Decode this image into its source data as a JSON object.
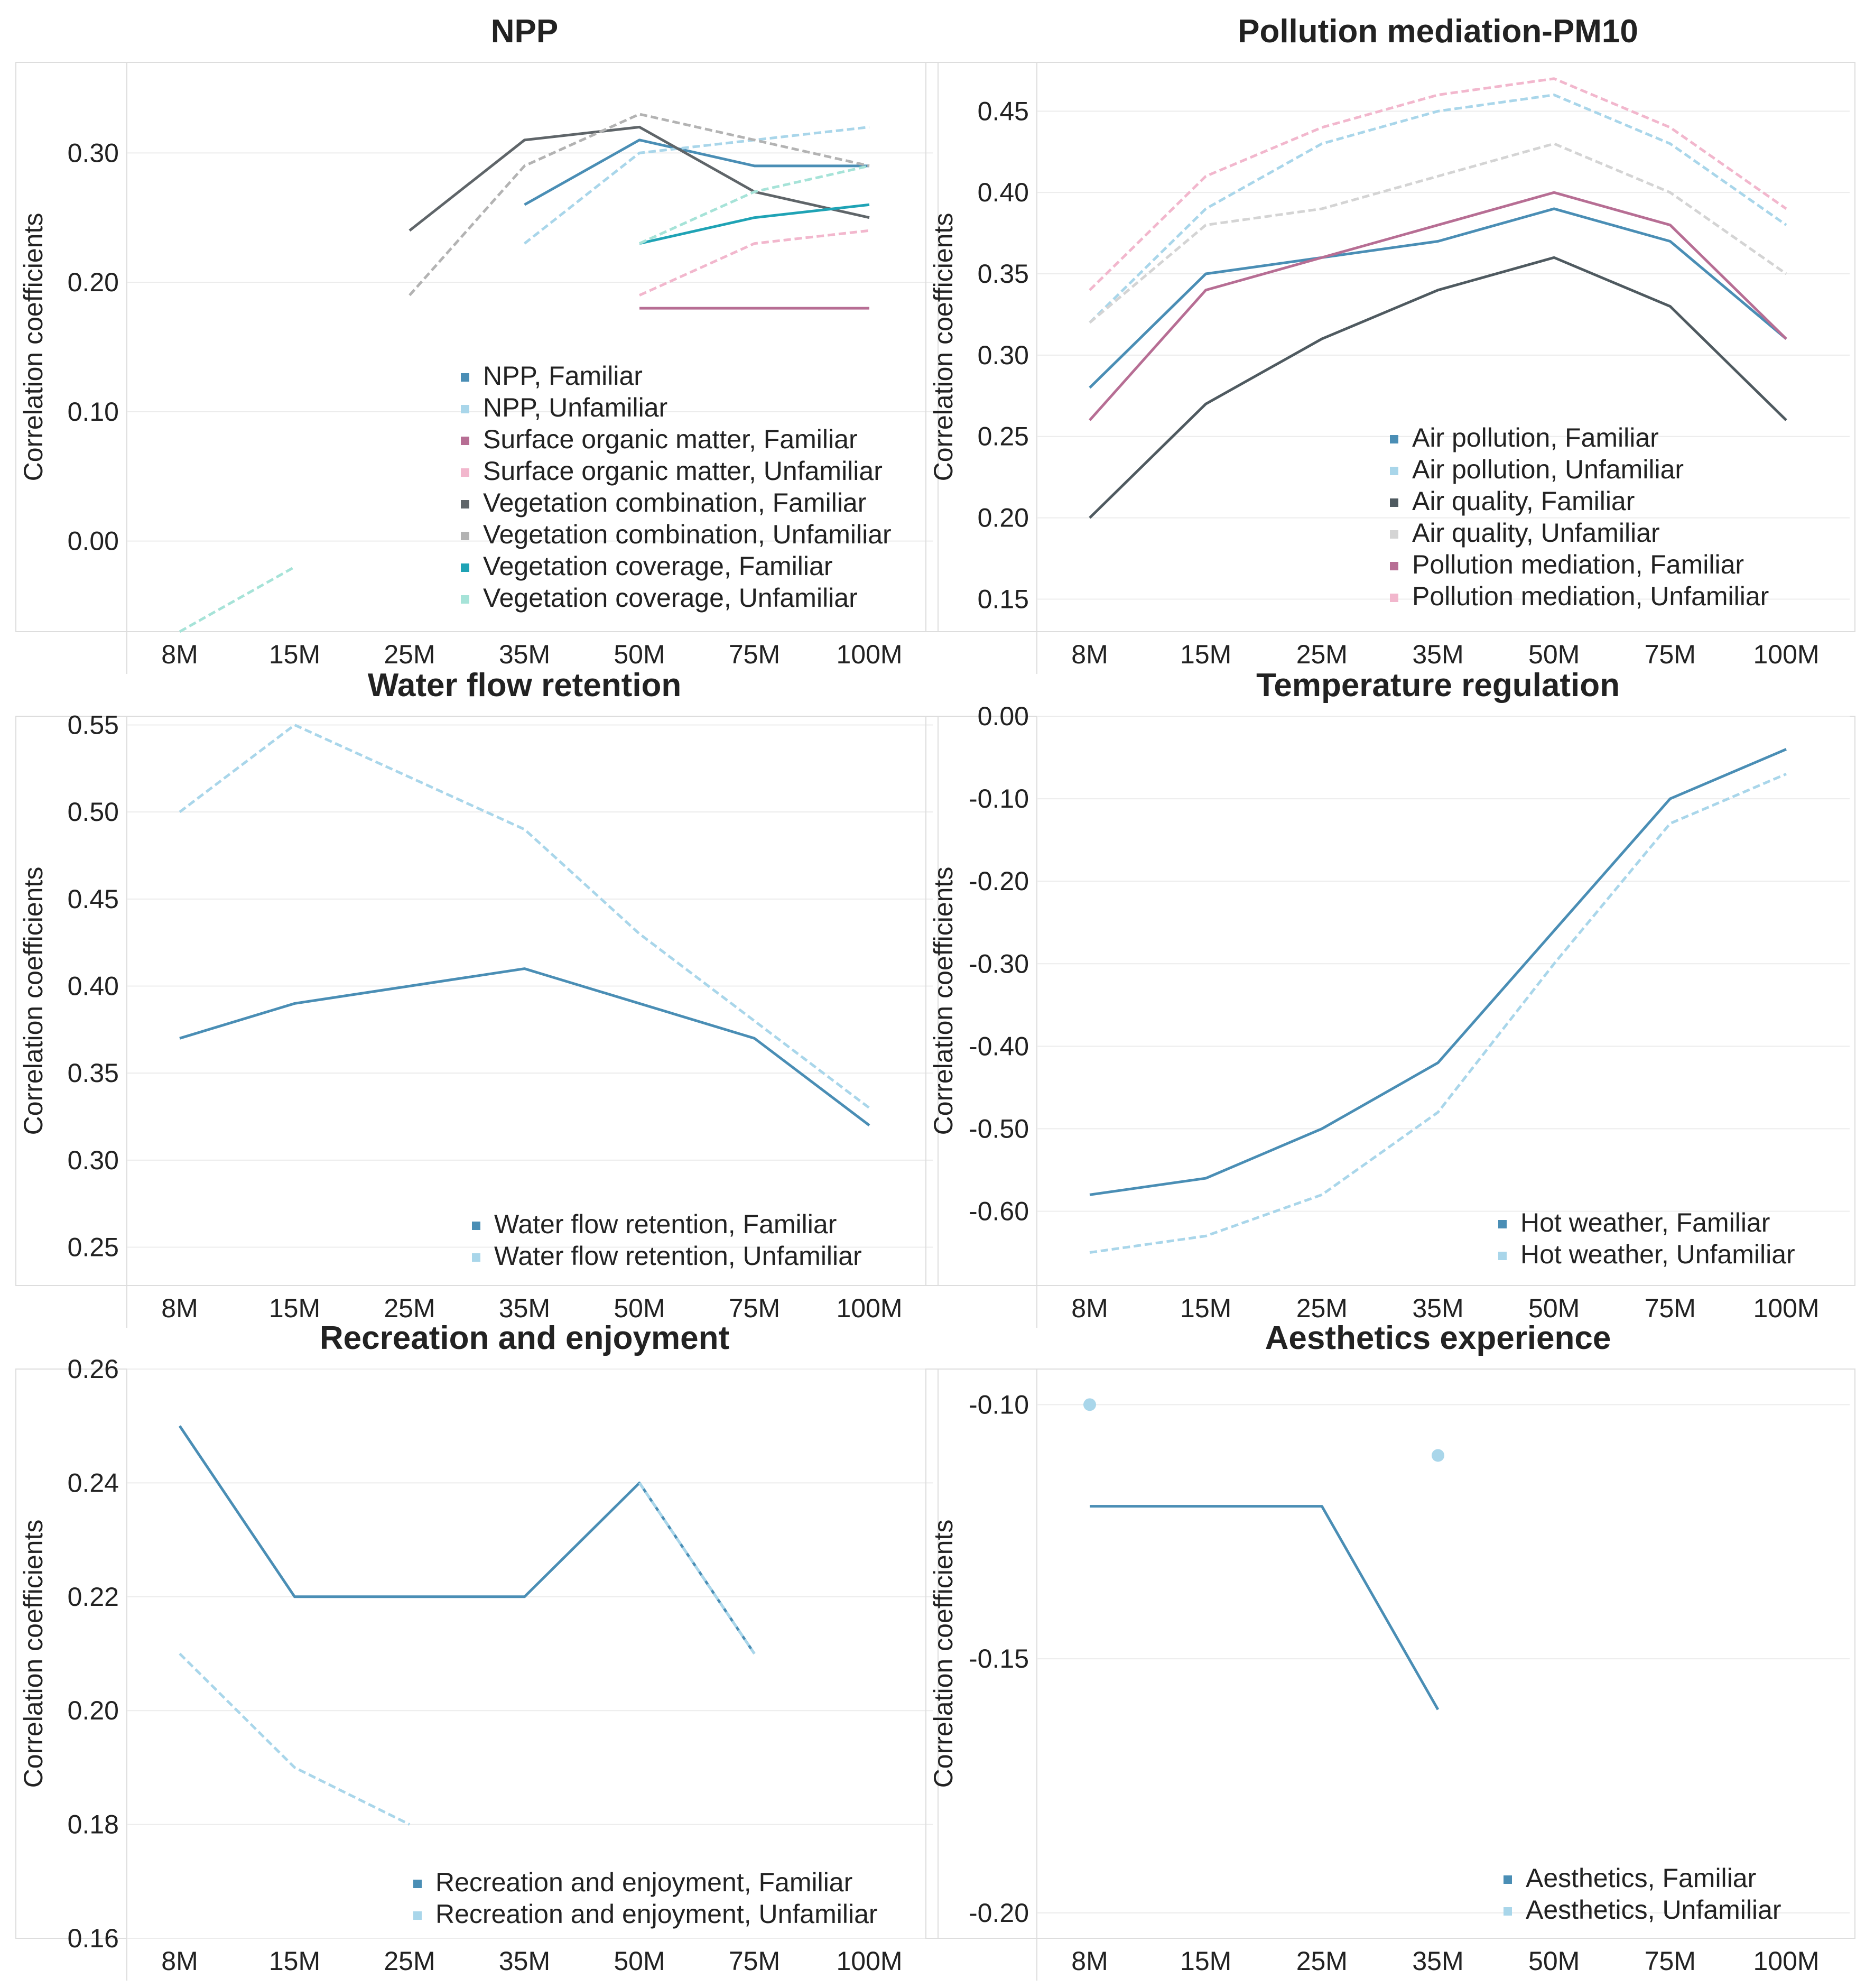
{
  "chart_data": [
    {
      "type": "line",
      "title": "NPP",
      "ylabel": "Correlation coefficients",
      "categories": [
        "8M",
        "15M",
        "25M",
        "35M",
        "50M",
        "75M",
        "100M"
      ],
      "ylim": [
        -0.07,
        0.37
      ],
      "yticks": [
        0.3,
        0.2,
        0.1,
        0.0
      ],
      "ytick_labels": [
        "0.30",
        "0.20",
        "0.10",
        "0.00"
      ],
      "legend_position": "bottom-right",
      "series": [
        {
          "name": "NPP, Familiar",
          "color": "#4a8eb5",
          "dashed": false,
          "values": [
            null,
            null,
            null,
            0.26,
            0.31,
            0.29,
            0.29
          ]
        },
        {
          "name": "NPP, Unfamiliar",
          "color": "#a9d6ea",
          "dashed": true,
          "values": [
            null,
            null,
            null,
            0.23,
            0.3,
            0.31,
            0.32
          ]
        },
        {
          "name": "Surface organic matter, Familiar",
          "color": "#b76e94",
          "dashed": false,
          "values": [
            null,
            null,
            null,
            null,
            0.18,
            0.18,
            0.18
          ]
        },
        {
          "name": "Surface organic matter, Unfamiliar",
          "color": "#f2b7cd",
          "dashed": true,
          "values": [
            null,
            null,
            null,
            null,
            0.19,
            0.23,
            0.24
          ]
        },
        {
          "name": "Vegetation combination, Familiar",
          "color": "#5f6569",
          "dashed": false,
          "values": [
            null,
            null,
            0.24,
            0.31,
            0.32,
            0.27,
            0.25
          ]
        },
        {
          "name": "Vegetation combination, Unfamiliar",
          "color": "#b3b3b3",
          "dashed": true,
          "values": [
            null,
            null,
            0.19,
            0.29,
            0.33,
            0.31,
            0.29
          ]
        },
        {
          "name": "Vegetation coverage, Familiar",
          "color": "#1fa3b5",
          "dashed": false,
          "values": [
            null,
            null,
            null,
            null,
            0.23,
            0.25,
            0.26
          ]
        },
        {
          "name": "Vegetation coverage, Unfamiliar",
          "color": "#a6e3d8",
          "dashed": true,
          "values": [
            -0.07,
            -0.02,
            null,
            null,
            0.23,
            0.27,
            0.29
          ]
        }
      ]
    },
    {
      "type": "line",
      "title": "Pollution mediation-PM10",
      "ylabel": "Correlation coefficients",
      "categories": [
        "8M",
        "15M",
        "25M",
        "35M",
        "50M",
        "75M",
        "100M"
      ],
      "ylim": [
        0.13,
        0.48
      ],
      "yticks": [
        0.45,
        0.4,
        0.35,
        0.3,
        0.25,
        0.2,
        0.15
      ],
      "ytick_labels": [
        "0.45",
        "0.40",
        "0.35",
        "0.30",
        "0.25",
        "0.20",
        "0.15"
      ],
      "legend_position": "bottom-right",
      "series": [
        {
          "name": "Air pollution, Familiar",
          "color": "#4a8eb5",
          "dashed": false,
          "values": [
            0.28,
            0.35,
            0.36,
            0.37,
            0.39,
            0.37,
            0.31
          ]
        },
        {
          "name": "Air pollution, Unfamiliar",
          "color": "#a9d6ea",
          "dashed": true,
          "values": [
            0.32,
            0.39,
            0.43,
            0.45,
            0.46,
            0.43,
            0.38
          ]
        },
        {
          "name": "Air quality, Familiar",
          "color": "#4f5a60",
          "dashed": false,
          "values": [
            0.2,
            0.27,
            0.31,
            0.34,
            0.36,
            0.33,
            0.26
          ]
        },
        {
          "name": "Air quality, Unfamiliar",
          "color": "#d4d4d4",
          "dashed": true,
          "values": [
            0.32,
            0.38,
            0.39,
            0.41,
            0.43,
            0.4,
            0.35
          ]
        },
        {
          "name": "Pollution mediation, Familiar",
          "color": "#b76e94",
          "dashed": false,
          "values": [
            0.26,
            0.34,
            0.36,
            0.38,
            0.4,
            0.38,
            0.31
          ]
        },
        {
          "name": "Pollution mediation, Unfamiliar",
          "color": "#f2b7cd",
          "dashed": true,
          "values": [
            0.34,
            0.41,
            0.44,
            0.46,
            0.47,
            0.44,
            0.39
          ]
        }
      ]
    },
    {
      "type": "line",
      "title": "Water flow retention",
      "ylabel": "Correlation coefficients",
      "categories": [
        "8M",
        "15M",
        "25M",
        "35M",
        "50M",
        "75M",
        "100M"
      ],
      "ylim": [
        0.228,
        0.555
      ],
      "yticks": [
        0.55,
        0.5,
        0.45,
        0.4,
        0.35,
        0.3,
        0.25
      ],
      "ytick_labels": [
        "0.55",
        "0.50",
        "0.45",
        "0.40",
        "0.35",
        "0.30",
        "0.25"
      ],
      "legend_position": "bottom-right",
      "series": [
        {
          "name": "Water flow retention, Familiar",
          "color": "#4a8eb5",
          "dashed": false,
          "values": [
            0.37,
            0.39,
            0.4,
            0.41,
            0.39,
            0.37,
            0.32
          ]
        },
        {
          "name": "Water flow retention, Unfamiliar",
          "color": "#a9d6ea",
          "dashed": true,
          "values": [
            0.5,
            0.55,
            0.52,
            0.49,
            0.43,
            0.38,
            0.33
          ]
        }
      ]
    },
    {
      "type": "line",
      "title": "Temperature regulation",
      "ylabel": "Correlation coefficients",
      "categories": [
        "8M",
        "15M",
        "25M",
        "35M",
        "50M",
        "75M",
        "100M"
      ],
      "ylim": [
        -0.69,
        0.0
      ],
      "yticks": [
        0.0,
        -0.1,
        -0.2,
        -0.3,
        -0.4,
        -0.5,
        -0.6
      ],
      "ytick_labels": [
        "0.00",
        "-0.10",
        "-0.20",
        "-0.30",
        "-0.40",
        "-0.50",
        "-0.60"
      ],
      "legend_position": "bottom-right",
      "series": [
        {
          "name": "Hot weather, Familiar",
          "color": "#4a8eb5",
          "dashed": false,
          "values": [
            -0.58,
            -0.56,
            -0.5,
            -0.42,
            -0.26,
            -0.1,
            -0.04
          ]
        },
        {
          "name": "Hot weather, Unfamiliar",
          "color": "#a9d6ea",
          "dashed": true,
          "values": [
            -0.65,
            -0.63,
            -0.58,
            -0.48,
            -0.3,
            -0.13,
            -0.07
          ]
        }
      ]
    },
    {
      "type": "line",
      "title": "Recreation and enjoyment",
      "ylabel": "Correlation coefficients",
      "categories": [
        "8M",
        "15M",
        "25M",
        "35M",
        "50M",
        "75M",
        "100M"
      ],
      "ylim": [
        0.16,
        0.26
      ],
      "yticks": [
        0.26,
        0.24,
        0.22,
        0.2,
        0.18,
        0.16
      ],
      "ytick_labels": [
        "0.26",
        "0.24",
        "0.22",
        "0.20",
        "0.18",
        "0.16"
      ],
      "legend_position": "bottom-right",
      "series": [
        {
          "name": "Recreation and enjoyment, Familiar",
          "color": "#4a8eb5",
          "dashed": false,
          "values": [
            0.25,
            0.22,
            0.22,
            0.22,
            0.24,
            0.21,
            null
          ]
        },
        {
          "name": "Recreation and enjoyment, Unfamiliar",
          "color": "#a9d6ea",
          "dashed": true,
          "values": [
            0.21,
            0.19,
            0.18,
            null,
            0.24,
            0.21,
            null
          ]
        }
      ]
    },
    {
      "type": "line",
      "title": "Aesthetics experience",
      "ylabel": "Correlation coefficients",
      "categories": [
        "8M",
        "15M",
        "25M",
        "35M",
        "50M",
        "75M",
        "100M"
      ],
      "ylim": [
        -0.205,
        -0.093
      ],
      "yticks": [
        -0.1,
        -0.15,
        -0.2
      ],
      "ytick_labels": [
        "-0.10",
        "-0.15",
        "-0.20"
      ],
      "legend_position": "bottom-right",
      "series": [
        {
          "name": "Aesthetics, Familiar",
          "color": "#4a8eb5",
          "dashed": false,
          "values": [
            -0.12,
            -0.12,
            -0.12,
            -0.16,
            null,
            null,
            null
          ]
        },
        {
          "name": "Aesthetics, Unfamiliar",
          "color": "#a9d6ea",
          "dashed": false,
          "values": [
            -0.1,
            null,
            null,
            -0.11,
            null,
            null,
            null
          ]
        }
      ]
    }
  ]
}
